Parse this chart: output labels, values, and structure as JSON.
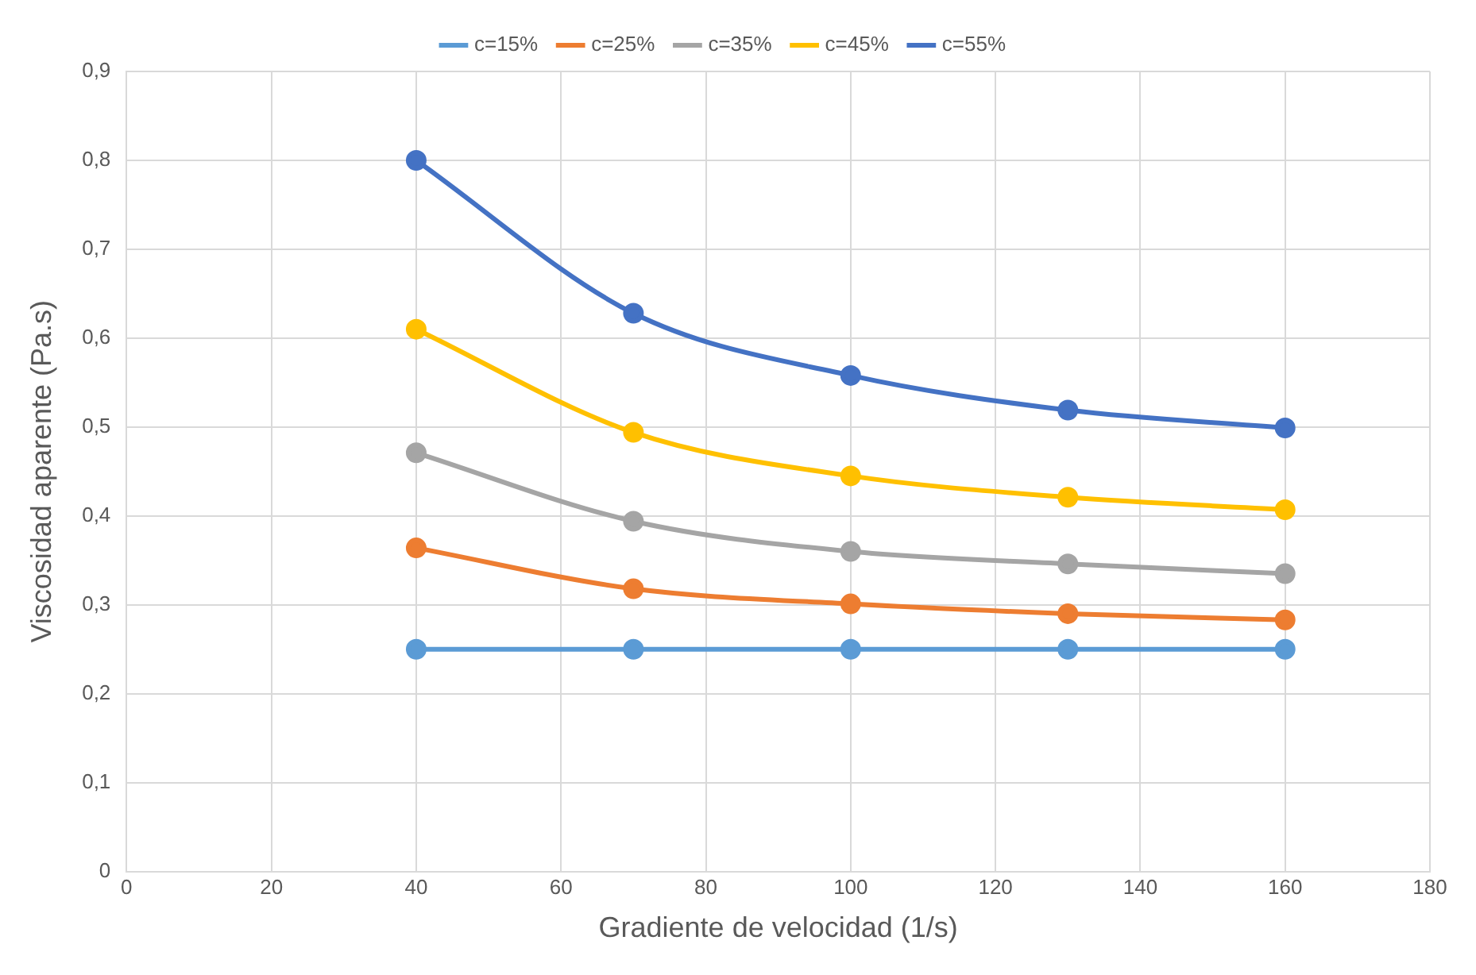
{
  "chart_data": {
    "type": "line",
    "xlabel": "Gradiente de velocidad (1/s)",
    "ylabel": "Viscosidad aparente (Pa.s)",
    "x": [
      40,
      70,
      100,
      130,
      160
    ],
    "series": [
      {
        "name": "c=15%",
        "color": "#5b9bd5",
        "values": [
          0.25,
          0.25,
          0.25,
          0.25,
          0.25
        ]
      },
      {
        "name": "c=25%",
        "color": "#ed7d31",
        "values": [
          0.364,
          0.318,
          0.301,
          0.29,
          0.283
        ]
      },
      {
        "name": "c=35%",
        "color": "#a5a5a5",
        "values": [
          0.471,
          0.394,
          0.36,
          0.346,
          0.335
        ]
      },
      {
        "name": "c=45%",
        "color": "#ffc000",
        "values": [
          0.61,
          0.494,
          0.445,
          0.421,
          0.407
        ]
      },
      {
        "name": "c=55%",
        "color": "#4472c4",
        "values": [
          0.8,
          0.628,
          0.558,
          0.519,
          0.499
        ]
      }
    ],
    "xlim": [
      0,
      180
    ],
    "xticks": [
      0,
      20,
      40,
      60,
      80,
      100,
      120,
      140,
      160,
      180
    ],
    "ylim": [
      0,
      0.9
    ],
    "yticks": [
      {
        "value": 0,
        "label": "0"
      },
      {
        "value": 0.1,
        "label": "0,1"
      },
      {
        "value": 0.2,
        "label": "0,2"
      },
      {
        "value": 0.3,
        "label": "0,3"
      },
      {
        "value": 0.4,
        "label": "0,4"
      },
      {
        "value": 0.5,
        "label": "0,5"
      },
      {
        "value": 0.6,
        "label": "0,6"
      },
      {
        "value": 0.7,
        "label": "0,7"
      },
      {
        "value": 0.8,
        "label": "0,8"
      },
      {
        "value": 0.9,
        "label": "0,9"
      }
    ],
    "grid": true,
    "legend": "top",
    "marker": "circle",
    "line_style": "solid"
  }
}
